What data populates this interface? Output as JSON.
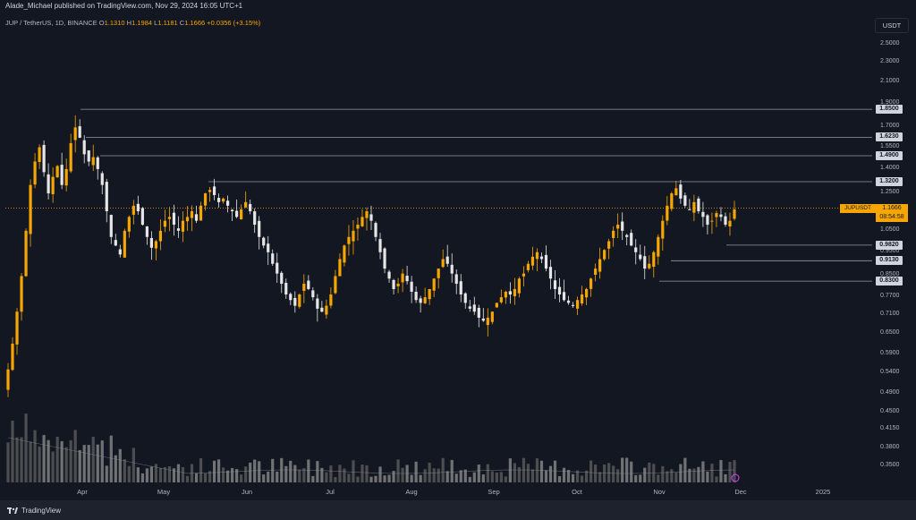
{
  "header": {
    "publisher": "Alade_Michael published on TradingView.com, Nov 29, 2024 16:05 UTC+1",
    "symbol": "JUP / TetherUS, 1D, BINANCE",
    "open_label": "O",
    "open": "1.1310",
    "high_label": "H",
    "high": "1.1984",
    "low_label": "L",
    "low": "1.1181",
    "close_label": "C",
    "close": "1.1666",
    "change": "+0.0356 (+3.15%)",
    "currency": "USDT"
  },
  "footer": {
    "brand": "TradingView"
  },
  "colors": {
    "up": "#f7a600",
    "down": "#e6e6e6",
    "background": "#131722",
    "level_line": "#9598a1",
    "current": "#f7a600"
  },
  "chart_data": {
    "type": "candlestick",
    "pair": "JUPUSDT",
    "y_scale": "log",
    "y_range": [
      0.33,
      2.7
    ],
    "y_ticks": [
      "2.5000",
      "2.3000",
      "2.1000",
      "1.9000",
      "1.7000",
      "1.5500",
      "1.4000",
      "1.2500",
      "1.0500",
      "0.9500",
      "0.8500",
      "0.7700",
      "0.7100",
      "0.6500",
      "0.5900",
      "0.5400",
      "0.4900",
      "0.4500",
      "0.4150",
      "0.3800",
      "0.3500"
    ],
    "x_ticks": [
      "Apr",
      "May",
      "Jun",
      "Jul",
      "Aug",
      "Sep",
      "Oct",
      "Nov",
      "Dec",
      "2025"
    ],
    "levels": [
      {
        "label": "1.8500",
        "value": 1.85
      },
      {
        "label": "1.6230",
        "value": 1.623
      },
      {
        "label": "1.4900",
        "value": 1.49
      },
      {
        "label": "1.3200",
        "value": 1.32
      },
      {
        "label": "0.9820",
        "value": 0.982
      },
      {
        "label": "0.9130",
        "value": 0.913
      },
      {
        "label": "0.8300",
        "value": 0.83
      }
    ],
    "current": {
      "label": "JUPUSDT",
      "price": "1.1666",
      "countdown": "08:54:58",
      "value": 1.1666
    },
    "close_path": [
      0.55,
      0.62,
      0.72,
      0.85,
      1.05,
      1.3,
      1.45,
      1.55,
      1.38,
      1.25,
      1.35,
      1.42,
      1.3,
      1.4,
      1.58,
      1.7,
      1.62,
      1.5,
      1.45,
      1.48,
      1.4,
      1.3,
      1.15,
      1.02,
      0.98,
      0.94,
      1.05,
      1.12,
      1.18,
      1.15,
      1.08,
      1.02,
      0.97,
      1.0,
      1.05,
      1.1,
      1.12,
      1.08,
      1.05,
      1.1,
      1.12,
      1.15,
      1.1,
      1.18,
      1.25,
      1.27,
      1.24,
      1.2,
      1.22,
      1.18,
      1.15,
      1.12,
      1.16,
      1.2,
      1.15,
      1.08,
      1.02,
      0.98,
      0.95,
      0.9,
      0.86,
      0.82,
      0.78,
      0.76,
      0.74,
      0.78,
      0.82,
      0.8,
      0.77,
      0.73,
      0.72,
      0.74,
      0.78,
      0.85,
      0.92,
      0.98,
      1.02,
      1.05,
      1.08,
      1.12,
      1.15,
      1.1,
      1.02,
      0.95,
      0.88,
      0.84,
      0.8,
      0.82,
      0.86,
      0.83,
      0.79,
      0.76,
      0.75,
      0.77,
      0.8,
      0.84,
      0.88,
      0.92,
      0.9,
      0.86,
      0.82,
      0.78,
      0.75,
      0.73,
      0.72,
      0.7,
      0.69,
      0.7,
      0.72,
      0.75,
      0.77,
      0.79,
      0.78,
      0.8,
      0.84,
      0.86,
      0.9,
      0.93,
      0.95,
      0.92,
      0.88,
      0.84,
      0.8,
      0.78,
      0.76,
      0.75,
      0.74,
      0.76,
      0.78,
      0.8,
      0.84,
      0.88,
      0.92,
      0.96,
      1.0,
      1.05,
      1.08,
      1.05,
      1.02,
      0.98,
      0.95,
      0.92,
      0.88,
      0.9,
      0.95,
      1.02,
      1.1,
      1.18,
      1.25,
      1.28,
      1.22,
      1.18,
      1.16,
      1.2,
      1.15,
      1.12,
      1.08,
      1.1,
      1.14,
      1.12,
      1.08,
      1.1,
      1.16
    ]
  }
}
